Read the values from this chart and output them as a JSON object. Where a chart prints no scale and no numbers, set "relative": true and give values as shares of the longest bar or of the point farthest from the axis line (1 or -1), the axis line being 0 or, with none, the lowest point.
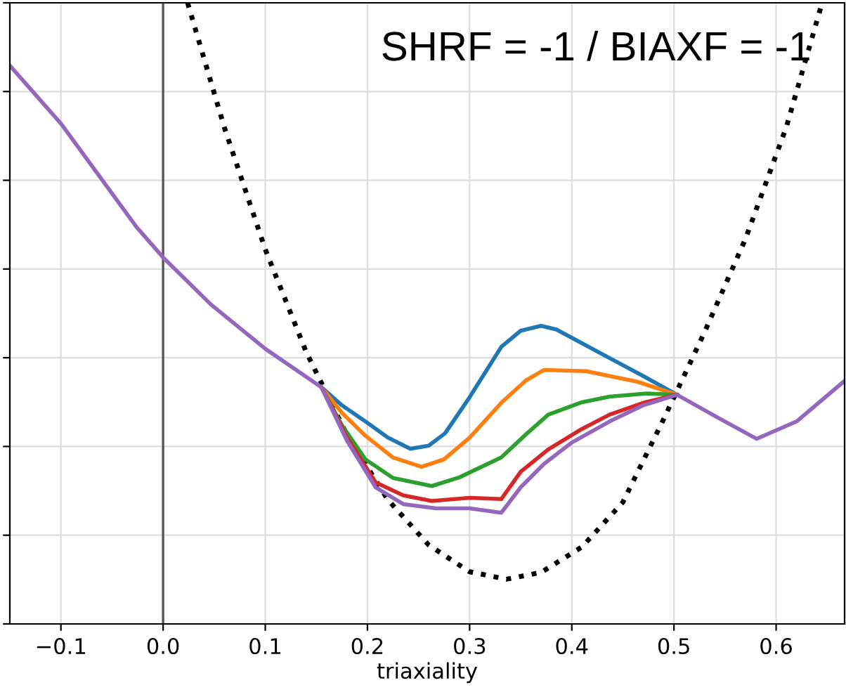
{
  "chart_data": {
    "type": "line",
    "relative": true,
    "xlabel": "triaxiality",
    "xlim": [
      -0.15,
      0.667
    ],
    "xticks": [
      {
        "value": -0.1,
        "label": "−0.1"
      },
      {
        "value": 0.0,
        "label": "0.0"
      },
      {
        "value": 0.1,
        "label": "0.1"
      },
      {
        "value": 0.2,
        "label": "0.2"
      },
      {
        "value": 0.3,
        "label": "0.3"
      },
      {
        "value": 0.4,
        "label": "0.4"
      },
      {
        "value": 0.5,
        "label": "0.5"
      },
      {
        "value": 0.6,
        "label": "0.6"
      }
    ],
    "tick_labels": "x",
    "grid": true,
    "annotations": [
      "SHRF = -1 / BIAXF = -1"
    ],
    "ref_lines": [
      {
        "axis": "x",
        "value": 0,
        "color": "#555555"
      }
    ],
    "series": [
      {
        "color": "#000000",
        "line_style": "dotted",
        "x": [
          0.024,
          0.06,
          0.1,
          0.14,
          0.18,
          0.22,
          0.26,
          0.3,
          0.336,
          0.37,
          0.41,
          0.45,
          0.49,
          0.53,
          0.57,
          0.61,
          0.645
        ],
        "values": [
          1.0,
          0.799,
          0.603,
          0.438,
          0.304,
          0.2,
          0.127,
          0.084,
          0.072,
          0.083,
          0.124,
          0.196,
          0.33,
          0.47,
          0.62,
          0.8,
          1.0
        ]
      },
      {
        "color": "#1f77b4",
        "x": [
          0.155,
          0.175,
          0.198,
          0.22,
          0.242,
          0.26,
          0.276,
          0.3,
          0.331,
          0.35,
          0.37,
          0.385,
          0.437,
          0.47,
          0.503
        ],
        "values": [
          0.381,
          0.352,
          0.326,
          0.3,
          0.282,
          0.287,
          0.307,
          0.365,
          0.446,
          0.472,
          0.48,
          0.474,
          0.428,
          0.399,
          0.369
        ]
      },
      {
        "color": "#ff7f0e",
        "x": [
          0.155,
          0.175,
          0.198,
          0.225,
          0.253,
          0.275,
          0.3,
          0.331,
          0.355,
          0.373,
          0.414,
          0.464,
          0.503
        ],
        "values": [
          0.381,
          0.34,
          0.303,
          0.268,
          0.253,
          0.265,
          0.3,
          0.356,
          0.392,
          0.409,
          0.407,
          0.39,
          0.369
        ]
      },
      {
        "color": "#2ca02c",
        "x": [
          0.155,
          0.175,
          0.198,
          0.225,
          0.263,
          0.29,
          0.331,
          0.355,
          0.377,
          0.41,
          0.437,
          0.473,
          0.503
        ],
        "values": [
          0.381,
          0.32,
          0.265,
          0.235,
          0.222,
          0.236,
          0.268,
          0.305,
          0.337,
          0.357,
          0.366,
          0.371,
          0.369
        ]
      },
      {
        "color": "#d62728",
        "x": [
          0.155,
          0.18,
          0.208,
          0.235,
          0.263,
          0.3,
          0.331,
          0.35,
          0.377,
          0.41,
          0.437,
          0.47,
          0.503
        ],
        "values": [
          0.381,
          0.3,
          0.228,
          0.207,
          0.198,
          0.203,
          0.201,
          0.245,
          0.281,
          0.314,
          0.337,
          0.356,
          0.369
        ]
      },
      {
        "color": "#9467bd",
        "x": [
          -0.15,
          -0.0997,
          -0.026,
          0.0,
          0.047,
          0.1,
          0.155,
          0.18,
          0.208,
          0.235,
          0.267,
          0.3,
          0.331,
          0.35,
          0.373,
          0.4,
          0.437,
          0.47,
          0.503,
          0.542,
          0.581,
          0.62,
          0.666
        ],
        "values": [
          0.899,
          0.805,
          0.639,
          0.59,
          0.514,
          0.443,
          0.381,
          0.295,
          0.22,
          0.193,
          0.186,
          0.186,
          0.179,
          0.22,
          0.258,
          0.292,
          0.326,
          0.352,
          0.369,
          0.333,
          0.298,
          0.326,
          0.39
        ]
      }
    ]
  }
}
